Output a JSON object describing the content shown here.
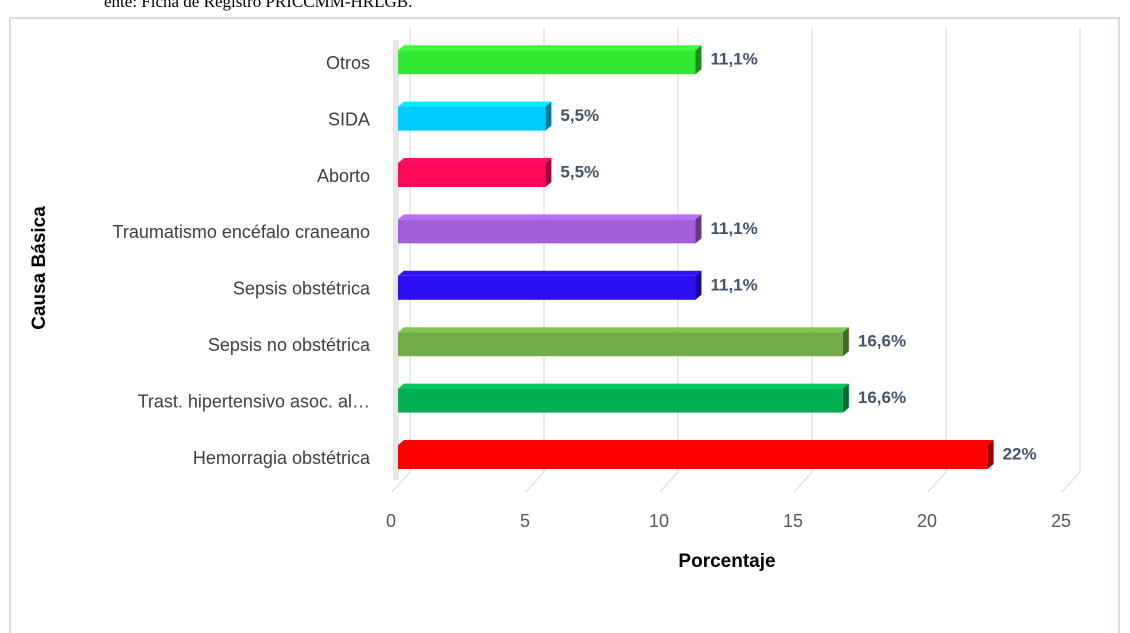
{
  "chart_data": {
    "type": "bar",
    "orientation": "horizontal",
    "source": "ente: Ficha de Registro PRICCMM-HRLGB.",
    "x_label": "Porcentaje",
    "y_label": "Causa Básica",
    "categories": [
      "Hemorragia obstétrica",
      "Trast. hipertensivo asoc. al…",
      "Sepsis no obstétrica",
      "Sepsis obstétrica",
      "Traumatismo encéfalo craneano",
      "Aborto",
      "SIDA",
      "Otros"
    ],
    "values": [
      22,
      16.6,
      16.6,
      11.1,
      11.1,
      5.5,
      5.5,
      11.1
    ],
    "value_labels": [
      "22%",
      "16,6%",
      "16,6%",
      "11,1%",
      "11,1%",
      "5,5%",
      "5,5%",
      "11,1%"
    ],
    "colors": [
      "#ff0000",
      "#00b050",
      "#70ad47",
      "#2b0ff5",
      "#a260d8",
      "#ff0a5a",
      "#00ccff",
      "#33e833"
    ],
    "xlim": [
      0,
      25
    ],
    "xticks": [
      0,
      5,
      10,
      15,
      20,
      25
    ],
    "grid": true
  }
}
